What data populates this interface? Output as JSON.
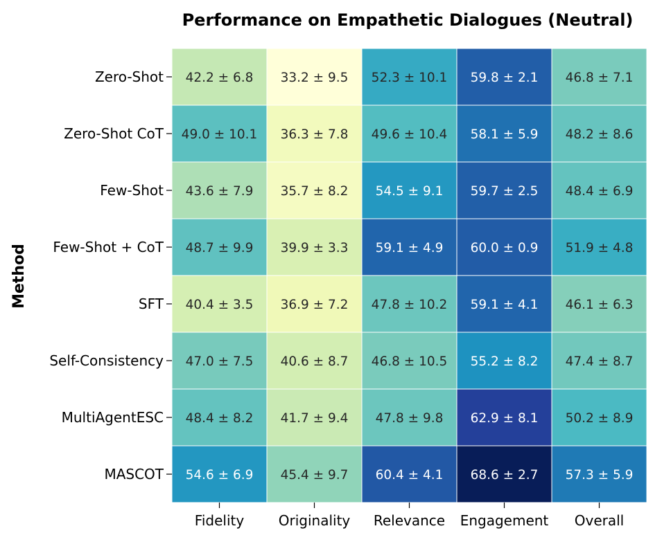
{
  "chart_data": {
    "type": "heatmap",
    "title": "Performance on Empathetic Dialogues (Neutral)",
    "xlabel": "",
    "ylabel": "Method",
    "columns": [
      "Fidelity",
      "Originality",
      "Relevance",
      "Engagement",
      "Overall"
    ],
    "rows": [
      "Zero-Shot",
      "Zero-Shot CoT",
      "Few-Shot",
      "Few-Shot + CoT",
      "SFT",
      "Self-Consistency",
      "MultiAgentESC",
      "MASCOT"
    ],
    "means": [
      [
        42.2,
        33.2,
        52.3,
        59.8,
        46.8
      ],
      [
        49.0,
        36.3,
        49.6,
        58.1,
        48.2
      ],
      [
        43.6,
        35.7,
        54.5,
        59.7,
        48.4
      ],
      [
        48.7,
        39.9,
        59.1,
        60.0,
        51.9
      ],
      [
        40.4,
        36.9,
        47.8,
        59.1,
        46.1
      ],
      [
        47.0,
        40.6,
        46.8,
        55.2,
        47.4
      ],
      [
        48.4,
        41.7,
        47.8,
        62.9,
        50.2
      ],
      [
        54.6,
        45.4,
        60.4,
        68.6,
        57.3
      ]
    ],
    "annotations": [
      [
        "42.2 ± 6.8",
        "33.2 ± 9.5",
        "52.3 ± 10.1",
        "59.8 ± 2.1",
        "46.8 ± 7.1"
      ],
      [
        "49.0 ± 10.1",
        "36.3 ± 7.8",
        "49.6 ± 10.4",
        "58.1 ± 5.9",
        "48.2 ± 8.6"
      ],
      [
        "43.6 ± 7.9",
        "35.7 ± 8.2",
        "54.5 ± 9.1",
        "59.7 ± 2.5",
        "48.4 ± 6.9"
      ],
      [
        "48.7 ± 9.9",
        "39.9 ± 3.3",
        "59.1 ± 4.9",
        "60.0 ± 0.9",
        "51.9 ± 4.8"
      ],
      [
        "40.4 ± 3.5",
        "36.9 ± 7.2",
        "47.8 ± 10.2",
        "59.1 ± 4.1",
        "46.1 ± 6.3"
      ],
      [
        "47.0 ± 7.5",
        "40.6 ± 8.7",
        "46.8 ± 10.5",
        "55.2 ± 8.2",
        "47.4 ± 8.7"
      ],
      [
        "48.4 ± 8.2",
        "41.7 ± 9.4",
        "47.8 ± 9.8",
        "62.9 ± 8.1",
        "50.2 ± 8.9"
      ],
      [
        "54.6 ± 6.9",
        "45.4 ± 9.7",
        "60.4 ± 4.1",
        "68.6 ± 2.7",
        "57.3 ± 5.9"
      ]
    ],
    "value_range": [
      33.2,
      68.6
    ],
    "colormap": "YlGnBu",
    "colormap_stops": [
      "#ffffd9",
      "#edf8b1",
      "#c7e9b4",
      "#7fcdbb",
      "#41b6c4",
      "#1d91c0",
      "#225ea8",
      "#253494",
      "#081d58"
    ],
    "dark_text_color": "#262626",
    "light_text_color": "#ffffff"
  }
}
